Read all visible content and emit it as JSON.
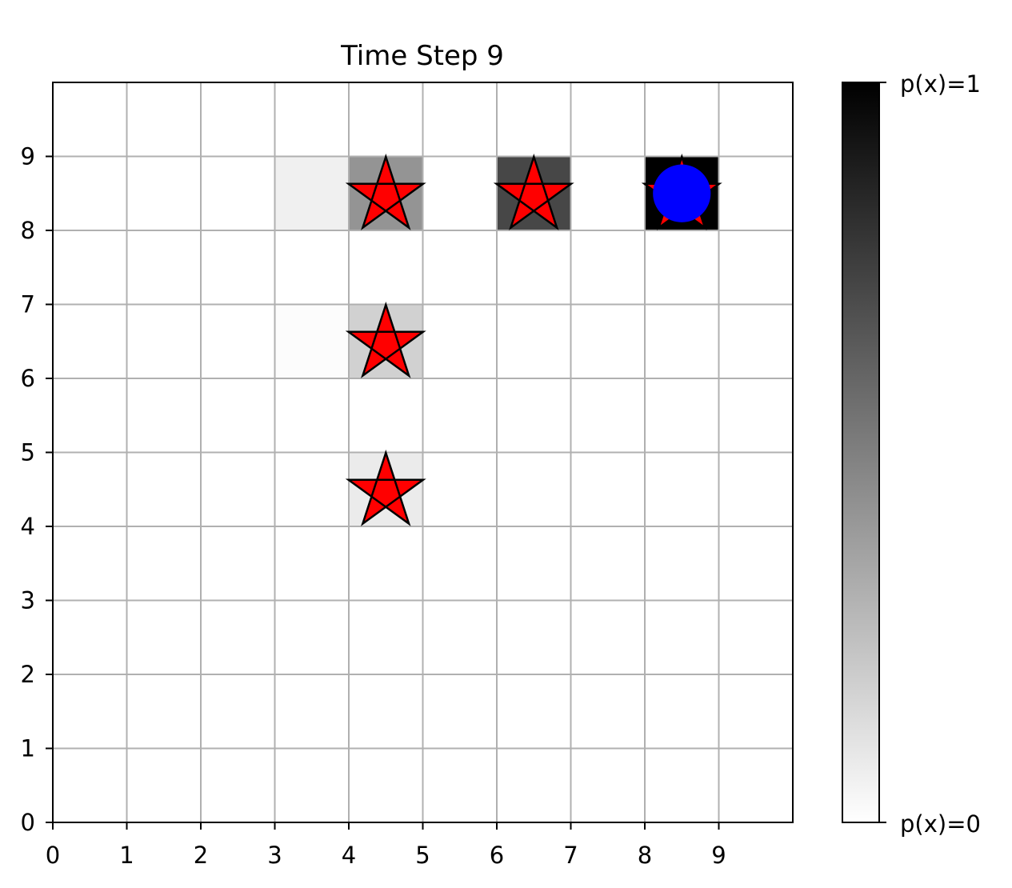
{
  "chart_data": {
    "type": "heatmap",
    "title": "Time Step 9",
    "xlim": [
      0,
      10
    ],
    "ylim": [
      0,
      10
    ],
    "x_ticks": [
      0,
      1,
      2,
      3,
      4,
      5,
      6,
      7,
      8,
      9
    ],
    "y_ticks": [
      0,
      1,
      2,
      3,
      4,
      5,
      6,
      7,
      8,
      9
    ],
    "grid": true,
    "colorbar": {
      "position": "right",
      "label_max": "p(x)=1",
      "label_min": "p(x)=0",
      "color_max": "#000000",
      "color_min": "#ffffff"
    },
    "cells": [
      {
        "x": 3,
        "y": 8,
        "p": 0.06
      },
      {
        "x": 4,
        "y": 8,
        "p": 0.42
      },
      {
        "x": 6,
        "y": 8,
        "p": 0.72
      },
      {
        "x": 8,
        "y": 8,
        "p": 1.0
      },
      {
        "x": 3,
        "y": 6,
        "p": 0.01
      },
      {
        "x": 4,
        "y": 6,
        "p": 0.18
      },
      {
        "x": 4,
        "y": 4,
        "p": 0.08
      }
    ],
    "stars": [
      {
        "x": 4,
        "y": 8
      },
      {
        "x": 6,
        "y": 8
      },
      {
        "x": 8,
        "y": 8
      },
      {
        "x": 4,
        "y": 6
      },
      {
        "x": 4,
        "y": 4
      }
    ],
    "agent": {
      "x": 8,
      "y": 8
    },
    "colors": {
      "star_fill": "#ff0000",
      "star_edge": "#000000",
      "agent_fill": "#0000ff",
      "grid": "#b0b0b0"
    }
  }
}
